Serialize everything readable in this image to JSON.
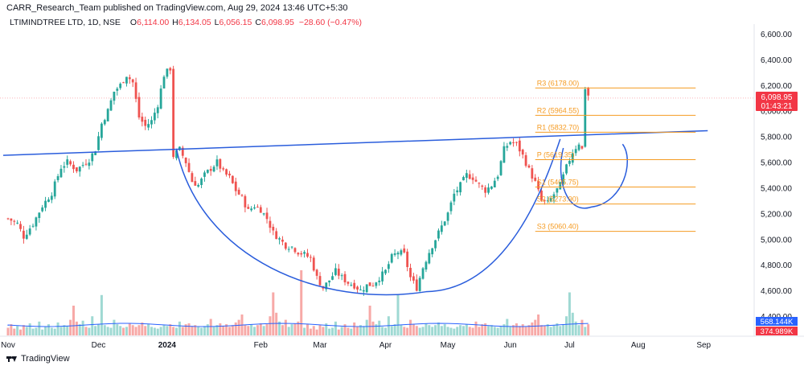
{
  "header": {
    "publish_line": "CARR_Research_Team published on TradingView.com, Aug 29, 2024 13:46 UTC+5:30",
    "symbol": "LTIMINDTREE LTD, 1D, NSE",
    "o_label": "O",
    "o_value": "6,114.00",
    "h_label": "H",
    "h_value": "6,134.05",
    "l_label": "L",
    "l_value": "6,056.15",
    "c_label": "C",
    "c_value": "6,098.95",
    "change": "−28.60 (−0.47%)"
  },
  "footer": {
    "brand": "TradingView"
  },
  "colors": {
    "up": "#26a69a",
    "down": "#ef5350",
    "vol_up": "#9fd9d3",
    "vol_down": "#f7a9a7",
    "pattern": "#2a5ddc",
    "pivot": "#f59b22",
    "price_tag": "#f23645",
    "vol_tag_blue": "#2962ff",
    "vol_tag_red": "#f23645"
  },
  "chart_data": {
    "type": "candlestick",
    "ylim": [
      4300,
      6700
    ],
    "y_ticks": [
      "6,600.00",
      "6,400.00",
      "6,200.00",
      "6,000.00",
      "5,800.00",
      "5,600.00",
      "5,400.00",
      "5,200.00",
      "5,000.00",
      "4,800.00",
      "4,600.00",
      "4,400.00"
    ],
    "y_tick_values": [
      6600,
      6400,
      6200,
      6000,
      5800,
      5600,
      5400,
      5200,
      5000,
      4800,
      4600,
      4400
    ],
    "x_ticks": [
      {
        "label": "Nov",
        "day": 0
      },
      {
        "label": "Dec",
        "day": 29
      },
      {
        "label": "2024",
        "day": 51
      },
      {
        "label": "Feb",
        "day": 81
      },
      {
        "label": "Mar",
        "day": 100
      },
      {
        "label": "Apr",
        "day": 121
      },
      {
        "label": "May",
        "day": 141
      },
      {
        "label": "Jun",
        "day": 161
      },
      {
        "label": "Jul",
        "day": 180
      },
      {
        "label": "Aug",
        "day": 202
      },
      {
        "label": "Sep",
        "day": 223
      }
    ],
    "close_path": [
      [
        0,
        5160
      ],
      [
        3,
        5120
      ],
      [
        5,
        5020
      ],
      [
        8,
        5120
      ],
      [
        11,
        5260
      ],
      [
        14,
        5360
      ],
      [
        17,
        5560
      ],
      [
        19,
        5600
      ],
      [
        22,
        5540
      ],
      [
        24,
        5580
      ],
      [
        26,
        5620
      ],
      [
        28,
        5700
      ],
      [
        30,
        5900
      ],
      [
        32,
        6000
      ],
      [
        34,
        6150
      ],
      [
        36,
        6200
      ],
      [
        38,
        6280
      ],
      [
        40,
        6220
      ],
      [
        42,
        5950
      ],
      [
        44,
        5880
      ],
      [
        46,
        5920
      ],
      [
        48,
        6050
      ],
      [
        50,
        6280
      ],
      [
        52,
        6330
      ],
      [
        53,
        5650
      ],
      [
        55,
        5700
      ],
      [
        57,
        5600
      ],
      [
        59,
        5450
      ],
      [
        61,
        5420
      ],
      [
        63,
        5500
      ],
      [
        65,
        5550
      ],
      [
        67,
        5600
      ],
      [
        69,
        5520
      ],
      [
        71,
        5480
      ],
      [
        73,
        5380
      ],
      [
        75,
        5320
      ],
      [
        77,
        5220
      ],
      [
        79,
        5260
      ],
      [
        81,
        5230
      ],
      [
        83,
        5160
      ],
      [
        85,
        5050
      ],
      [
        87,
        5000
      ],
      [
        89,
        4950
      ],
      [
        91,
        4940
      ],
      [
        93,
        4900
      ],
      [
        95,
        4880
      ],
      [
        97,
        4850
      ],
      [
        99,
        4700
      ],
      [
        101,
        4620
      ],
      [
        103,
        4680
      ],
      [
        105,
        4750
      ],
      [
        107,
        4700
      ],
      [
        109,
        4660
      ],
      [
        111,
        4640
      ],
      [
        113,
        4600
      ],
      [
        115,
        4640
      ],
      [
        117,
        4650
      ],
      [
        119,
        4700
      ],
      [
        121,
        4750
      ],
      [
        123,
        4860
      ],
      [
        125,
        4900
      ],
      [
        127,
        4880
      ],
      [
        129,
        4700
      ],
      [
        131,
        4620
      ],
      [
        133,
        4780
      ],
      [
        135,
        4900
      ],
      [
        137,
        5000
      ],
      [
        139,
        5100
      ],
      [
        141,
        5200
      ],
      [
        143,
        5350
      ],
      [
        145,
        5420
      ],
      [
        147,
        5500
      ],
      [
        149,
        5480
      ],
      [
        151,
        5420
      ],
      [
        153,
        5380
      ],
      [
        155,
        5420
      ],
      [
        157,
        5500
      ],
      [
        159,
        5700
      ],
      [
        161,
        5760
      ],
      [
        163,
        5740
      ],
      [
        165,
        5650
      ],
      [
        167,
        5540
      ],
      [
        169,
        5440
      ],
      [
        171,
        5300
      ],
      [
        173,
        5280
      ],
      [
        175,
        5350
      ],
      [
        177,
        5420
      ],
      [
        179,
        5560
      ],
      [
        181,
        5680
      ],
      [
        183,
        5750
      ],
      [
        184,
        5700
      ],
      [
        185,
        6180
      ],
      [
        186,
        6120
      ]
    ],
    "trendline": {
      "from": [
        0,
        5653
      ],
      "to": [
        223,
        5845
      ]
    },
    "pivots": [
      {
        "label": "R3 (6178.00)",
        "value": 6178.0,
        "from_day": 169,
        "to_day": 223
      },
      {
        "label": "R2 (5964.55)",
        "value": 5964.55,
        "from_day": 169,
        "to_day": 223
      },
      {
        "label": "R1 (5832.70)",
        "value": 5832.7,
        "from_day": 169,
        "to_day": 223
      },
      {
        "label": "P (5619.35)",
        "value": 5619.35,
        "from_day": 169,
        "to_day": 223
      },
      {
        "label": "S1 (5405.75)",
        "value": 5405.75,
        "from_day": 169,
        "to_day": 223
      },
      {
        "label": "S2 (5273.90)",
        "value": 5273.9,
        "from_day": 169,
        "to_day": 223
      },
      {
        "label": "S3 (5060.40)",
        "value": 5060.4,
        "from_day": 169,
        "to_day": 223
      }
    ],
    "cup": {
      "left_day": 54,
      "left_price": 5700,
      "bottom_day": 134,
      "bottom_price": 4590,
      "right_day": 177,
      "right_price": 5780
    },
    "handle": {
      "left_day": 178,
      "bottom_day": 187,
      "bottom_price": 5250,
      "right_day": 197,
      "right_price": 5740
    },
    "last_price": {
      "value": "6,098.95",
      "countdown": "01:43:21",
      "price": 6098.95
    },
    "volume": {
      "ma_label": "568.144K",
      "vol_label": "374.989K",
      "bars_seed": [
        5,
        9,
        4,
        7,
        3,
        8,
        6,
        10,
        4,
        5,
        12,
        3,
        6,
        9,
        5,
        4,
        11,
        6,
        8,
        7,
        14,
        30,
        12,
        9,
        13,
        6,
        5,
        18,
        7,
        9,
        42,
        8,
        6,
        5,
        14,
        9,
        7,
        5,
        6,
        10,
        8,
        6,
        8,
        11,
        7,
        9,
        6,
        5,
        4,
        6,
        8,
        7,
        9,
        6,
        5,
        12,
        6,
        9,
        10,
        7,
        8,
        6,
        5,
        7,
        9,
        15,
        6,
        8,
        10,
        7,
        9,
        6,
        8,
        11,
        14,
        20,
        8,
        7,
        9,
        6,
        8,
        10,
        7,
        9,
        18,
        45,
        22,
        12,
        8,
        14,
        6,
        9,
        10,
        12,
        70
      ]
    },
    "title": "",
    "xlabel": "",
    "ylabel": ""
  }
}
